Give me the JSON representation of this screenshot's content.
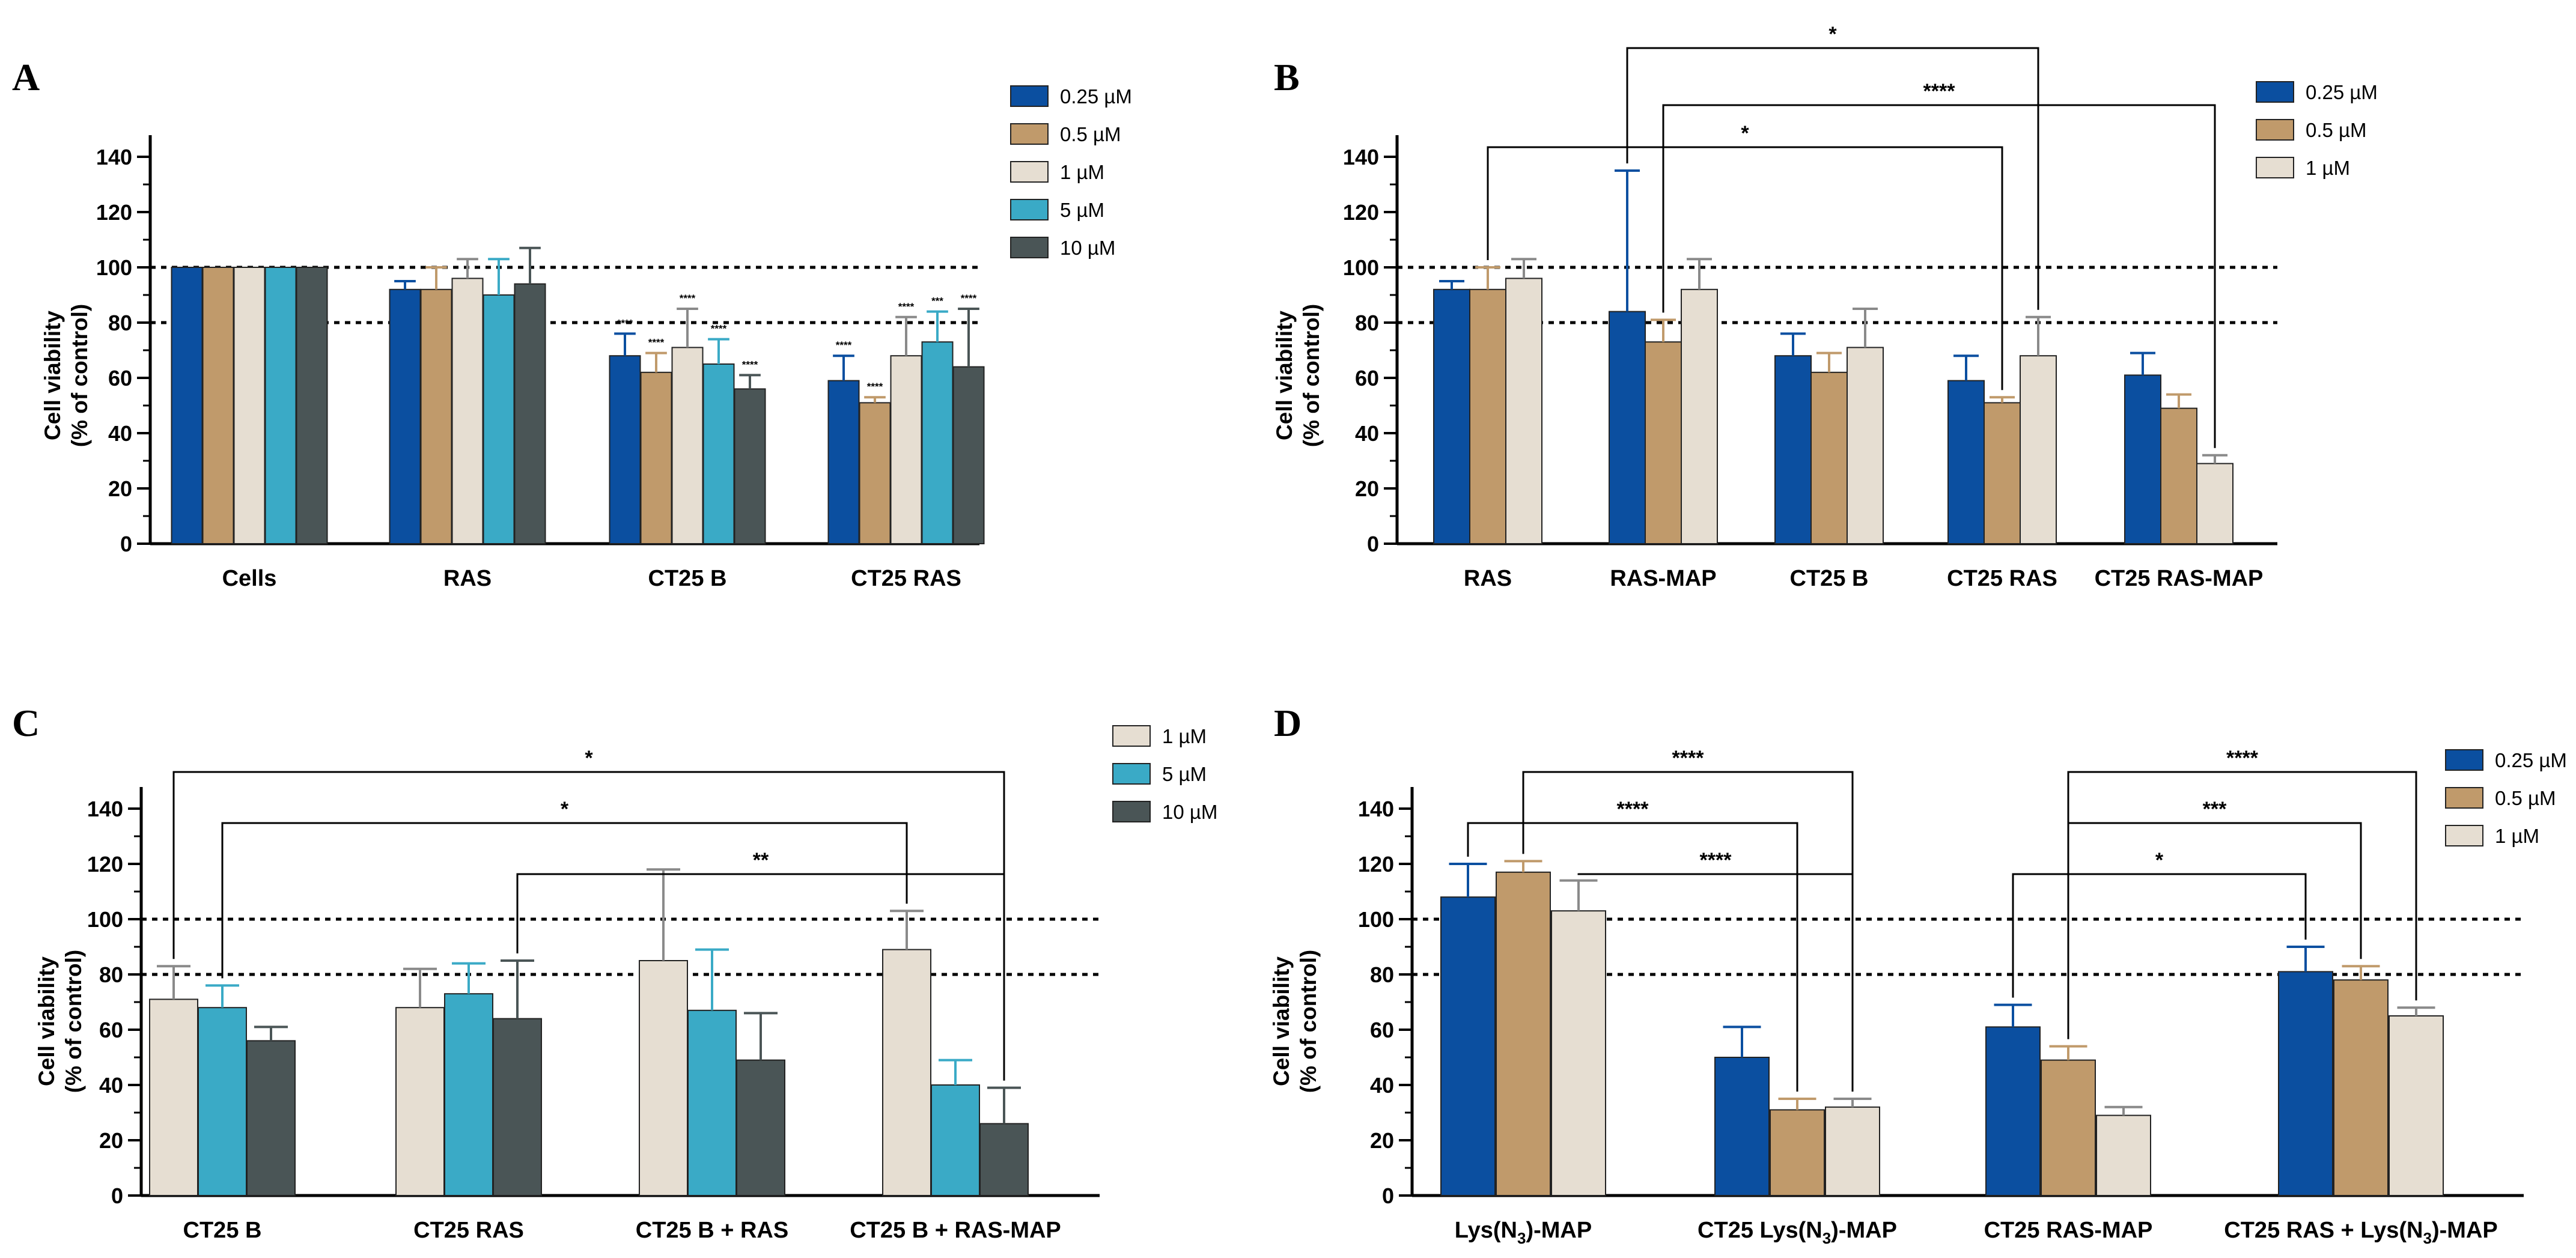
{
  "colors": {
    "0.25 µM": "#0b4fa0",
    "0.5 µM": "#c09a6b",
    "1 µM": "#e6ded2",
    "5 µM": "#3aaac6",
    "10 µM": "#4a5556"
  },
  "chart_data": [
    {
      "panel": "A",
      "type": "bar",
      "ylabel": [
        "Cell viability",
        "(% of control)"
      ],
      "ylim": [
        0,
        150
      ],
      "yticks": [
        0,
        20,
        40,
        60,
        80,
        100,
        120,
        140
      ],
      "reference_lines": [
        100,
        80
      ],
      "categories": [
        {
          "label": "Cells"
        },
        {
          "label": "RAS"
        },
        {
          "label": "CT25 B"
        },
        {
          "label": "CT25 RAS"
        }
      ],
      "series": [
        {
          "name": "0.25 µM",
          "values": [
            100,
            92,
            68,
            59
          ],
          "errors": [
            0,
            3,
            8,
            9
          ],
          "stars": [
            "",
            "",
            "****",
            "****"
          ]
        },
        {
          "name": "0.5 µM",
          "values": [
            100,
            92,
            62,
            51
          ],
          "errors": [
            0,
            8,
            7,
            2
          ],
          "stars": [
            "",
            "",
            "****",
            "****"
          ]
        },
        {
          "name": "1 µM",
          "values": [
            100,
            96,
            71,
            68
          ],
          "errors": [
            0,
            7,
            14,
            14
          ],
          "stars": [
            "",
            "",
            "****",
            "****"
          ]
        },
        {
          "name": "5 µM",
          "values": [
            100,
            90,
            65,
            73
          ],
          "errors": [
            0,
            13,
            9,
            11
          ],
          "stars": [
            "",
            "",
            "****",
            "***"
          ]
        },
        {
          "name": "10 µM",
          "values": [
            100,
            94,
            56,
            64
          ],
          "errors": [
            0,
            13,
            5,
            21
          ],
          "stars": [
            "",
            "",
            "****",
            "****"
          ]
        }
      ],
      "brackets": []
    },
    {
      "panel": "B",
      "type": "bar",
      "ylabel": [
        "Cell viability",
        "(% of control)"
      ],
      "ylim": [
        0,
        150
      ],
      "yticks": [
        0,
        20,
        40,
        60,
        80,
        100,
        120,
        140
      ],
      "reference_lines": [
        100,
        80
      ],
      "categories": [
        {
          "label": "RAS"
        },
        {
          "label": "RAS-MAP"
        },
        {
          "label": "CT25 B"
        },
        {
          "label": "CT25 RAS"
        },
        {
          "label": "CT25 RAS-MAP"
        }
      ],
      "series": [
        {
          "name": "0.25 µM",
          "values": [
            92,
            84,
            68,
            59,
            61
          ],
          "errors": [
            3,
            51,
            8,
            9,
            8
          ]
        },
        {
          "name": "0.5 µM",
          "values": [
            92,
            73,
            62,
            51,
            49
          ],
          "errors": [
            8,
            8,
            7,
            2,
            5
          ]
        },
        {
          "name": "1 µM",
          "values": [
            96,
            92,
            71,
            68,
            29
          ],
          "errors": [
            7,
            11,
            14,
            14,
            3
          ]
        }
      ],
      "brackets": [
        {
          "from": [
            1,
            0
          ],
          "to": [
            3,
            2
          ],
          "label": "*"
        },
        {
          "from": [
            1,
            1
          ],
          "to": [
            4,
            2
          ],
          "label": "****"
        },
        {
          "from": [
            0,
            1
          ],
          "to": [
            3,
            1
          ],
          "label": "*"
        }
      ]
    },
    {
      "panel": "C",
      "type": "bar",
      "ylabel": [
        "Cell viability",
        "(% of control)"
      ],
      "ylim": [
        0,
        150
      ],
      "yticks": [
        0,
        20,
        40,
        60,
        80,
        100,
        120,
        140
      ],
      "reference_lines": [
        100,
        80
      ],
      "categories": [
        {
          "label": "CT25 B"
        },
        {
          "label": "CT25 RAS"
        },
        {
          "label": "CT25 B + RAS"
        },
        {
          "label": "CT25 B + RAS-MAP"
        }
      ],
      "series": [
        {
          "name": "1 µM",
          "values": [
            71,
            68,
            85,
            89
          ],
          "errors": [
            12,
            14,
            33,
            14
          ]
        },
        {
          "name": "5 µM",
          "values": [
            68,
            73,
            67,
            40
          ],
          "errors": [
            8,
            11,
            22,
            9
          ]
        },
        {
          "name": "10 µM",
          "values": [
            56,
            64,
            49,
            26
          ],
          "errors": [
            5,
            21,
            17,
            13
          ]
        }
      ],
      "brackets": [
        {
          "from": [
            0,
            0
          ],
          "to": [
            3,
            2
          ],
          "label": "*"
        },
        {
          "from": [
            0,
            1
          ],
          "to": [
            3,
            0
          ],
          "label": "*"
        },
        {
          "from": [
            1,
            2
          ],
          "to": [
            3,
            2
          ],
          "label": "**"
        }
      ]
    },
    {
      "panel": "D",
      "type": "bar",
      "ylabel": [
        "Cell viability",
        "(% of control)"
      ],
      "ylim": [
        0,
        150
      ],
      "yticks": [
        0,
        20,
        40,
        60,
        80,
        100,
        120,
        140
      ],
      "reference_lines": [
        100,
        80
      ],
      "categories": [
        {
          "label": "Lys(N",
          "sub": "3",
          "tail": ")-MAP"
        },
        {
          "label": "CT25 Lys(N",
          "sub": "3",
          "tail": ")-MAP"
        },
        {
          "label": "CT25 RAS-MAP"
        },
        {
          "label": "CT25 RAS + Lys(N",
          "sub": "3",
          "tail": ")-MAP"
        }
      ],
      "series": [
        {
          "name": "0.25 µM",
          "values": [
            108,
            50,
            61,
            81
          ],
          "errors": [
            12,
            11,
            8,
            9
          ]
        },
        {
          "name": "0.5 µM",
          "values": [
            117,
            31,
            49,
            78
          ],
          "errors": [
            4,
            4,
            5,
            5
          ]
        },
        {
          "name": "1 µM",
          "values": [
            103,
            32,
            29,
            65
          ],
          "errors": [
            11,
            3,
            3,
            3
          ]
        }
      ],
      "brackets": [
        {
          "from": [
            0,
            1
          ],
          "to": [
            1,
            2
          ],
          "label": "****"
        },
        {
          "from": [
            0,
            0
          ],
          "to": [
            1,
            1
          ],
          "label": "****"
        },
        {
          "from": [
            0,
            2
          ],
          "to": [
            1,
            2
          ],
          "label": "****"
        },
        {
          "from": [
            2,
            1
          ],
          "to": [
            3,
            2
          ],
          "label": "****"
        },
        {
          "from": [
            2,
            1
          ],
          "to": [
            3,
            1
          ],
          "label": "***"
        },
        {
          "from": [
            2,
            0
          ],
          "to": [
            3,
            0
          ],
          "label": "*"
        }
      ]
    }
  ]
}
